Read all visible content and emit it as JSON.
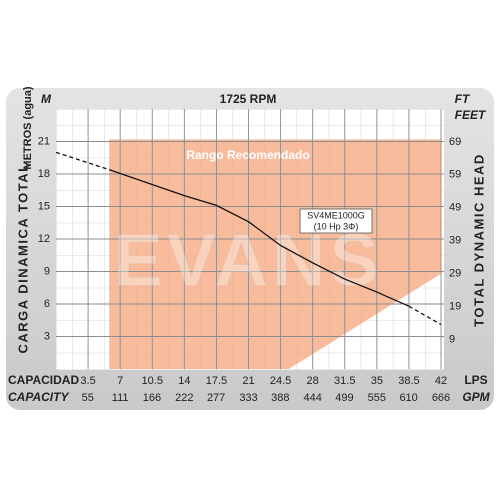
{
  "chart_data": {
    "type": "line",
    "title": "1725 RPM",
    "y_unit": "M",
    "y_label": "METROS (agua)",
    "y_title": "CARGA DINAMICA TOTAL",
    "y2_unit": "FT",
    "y2_unit_long": "FEET",
    "y2_title": "TOTAL DYNAMIC HEAD",
    "x_label": "CAPACIDAD",
    "x_unit": "LPS",
    "x2_label": "CAPACITY",
    "x2_unit": "GPM",
    "watermark": "EVANS",
    "xlim": [
      0,
      42
    ],
    "xticks": [
      3.5,
      7,
      10.5,
      14,
      17.5,
      21,
      24.5,
      28,
      31.5,
      35,
      38.5,
      42
    ],
    "x2lim": [
      0,
      666
    ],
    "x2ticks": [
      55,
      111,
      166,
      222,
      277,
      333,
      388,
      444,
      499,
      555,
      610,
      666
    ],
    "ylim": [
      0,
      24
    ],
    "yticks": [
      3,
      6,
      9,
      12,
      15,
      18,
      21
    ],
    "y2lim": [
      0,
      79
    ],
    "y2ticks": [
      9,
      19,
      29,
      39,
      49,
      59,
      69
    ],
    "grid": true,
    "recommended_region": {
      "label": "Rango Recomendado",
      "color": "#f6a57c",
      "points": [
        [
          5.8,
          0
        ],
        [
          5.8,
          21.2
        ],
        [
          42,
          21.2
        ],
        [
          42,
          8.8
        ],
        [
          25.4,
          0
        ]
      ]
    },
    "series": [
      {
        "name": "SV4ME1000G",
        "note": "(10 Hp 3Φ)",
        "color": "#111111",
        "x": [
          0,
          5.8,
          14,
          17.5,
          21,
          24.5,
          28,
          31.5,
          35,
          38.5,
          42
        ],
        "values": [
          20.0,
          18.4,
          16.0,
          15.1,
          13.6,
          11.4,
          9.8,
          8.3,
          7.1,
          5.8,
          4.1
        ],
        "solid_xlim": [
          5.8,
          38.5
        ]
      }
    ]
  }
}
